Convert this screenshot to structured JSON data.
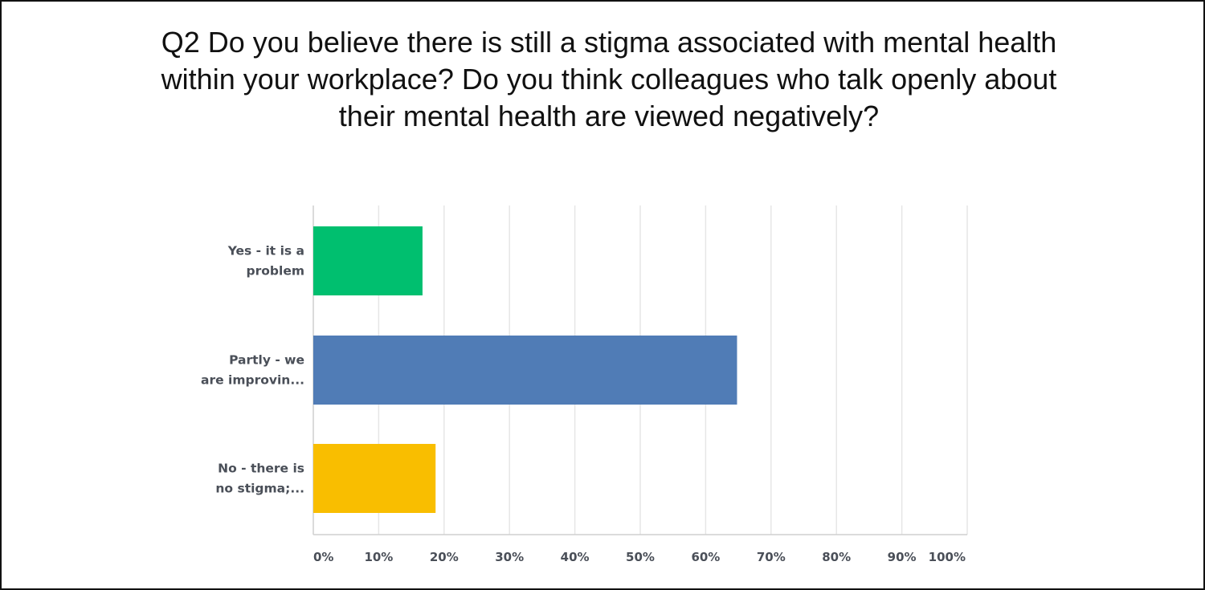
{
  "title_lines": [
    "Q2 Do you believe there is still a stigma associated with mental health",
    "within your workplace? Do you think colleagues who talk openly about",
    "their mental health are viewed negatively?"
  ],
  "chart_data": {
    "type": "bar",
    "orientation": "horizontal",
    "title": "Q2 Do you believe there is still a stigma associated with mental health within your workplace? Do you think colleagues who talk openly about their mental health are viewed negatively?",
    "categories": [
      [
        "Yes - it is a",
        "problem"
      ],
      [
        "Partly - we",
        "are improvin..."
      ],
      [
        "No - there is",
        "no stigma;..."
      ]
    ],
    "values": [
      16.7,
      64.8,
      18.7
    ],
    "colors": [
      "#00bf6f",
      "#507cb6",
      "#f9be00"
    ],
    "xlim": [
      0,
      100
    ],
    "ticks": [
      0,
      10,
      20,
      30,
      40,
      50,
      60,
      70,
      80,
      90,
      100
    ],
    "tick_labels": [
      "0%",
      "10%",
      "20%",
      "30%",
      "40%",
      "50%",
      "60%",
      "70%",
      "80%",
      "90%",
      "100%"
    ],
    "grid": true,
    "gridline_color": "#e6e6e6",
    "axis_color": "#cfcfcf"
  }
}
